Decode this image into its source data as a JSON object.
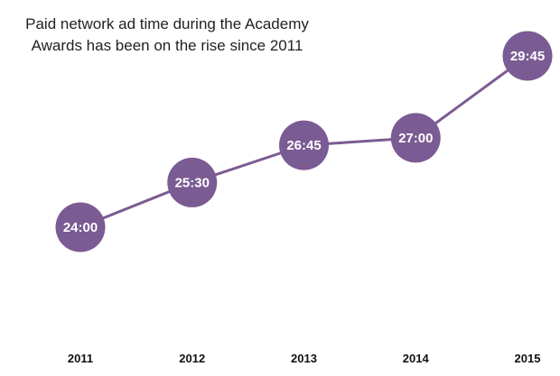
{
  "chart_data": {
    "type": "line",
    "title_lines": [
      "Paid network ad time during the Academy",
      "Awards has been on the rise since 2011"
    ],
    "categories": [
      "2011",
      "2012",
      "2013",
      "2014",
      "2015"
    ],
    "values": [
      24.0,
      25.5,
      26.75,
      27.0,
      29.75
    ],
    "labels": [
      "24:00",
      "25:30",
      "26:45",
      "27:00",
      "29:45"
    ],
    "ylim": [
      20,
      30
    ],
    "grid": false,
    "color": "#7b5b93"
  }
}
